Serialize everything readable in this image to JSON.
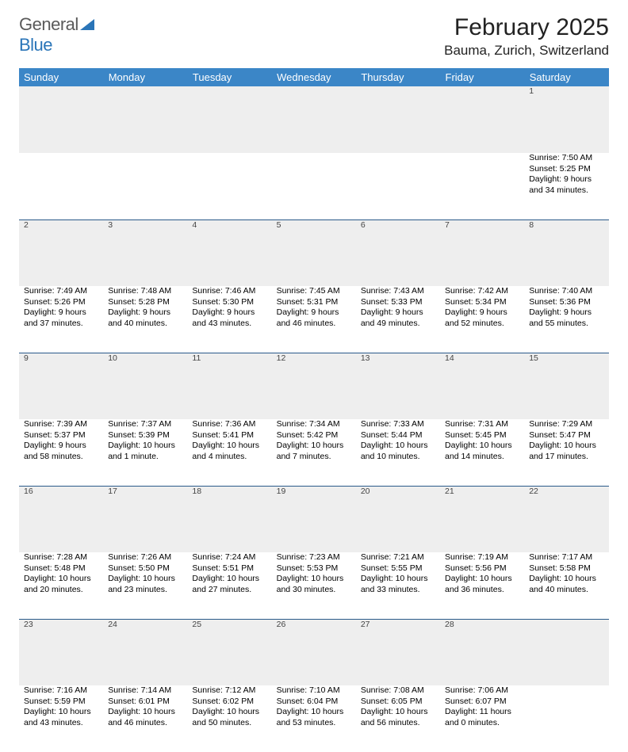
{
  "logo": {
    "word1": "General",
    "word2": "Blue"
  },
  "title": "February 2025",
  "location": "Bauma, Zurich, Switzerland",
  "colors": {
    "header_bg": "#3b86c7",
    "header_text": "#ffffff",
    "daynum_bg": "#eeeeee",
    "rule": "#2a5a8a",
    "logo_gray": "#5a5a5a",
    "logo_blue": "#2a75b8"
  },
  "weekdays": [
    "Sunday",
    "Monday",
    "Tuesday",
    "Wednesday",
    "Thursday",
    "Friday",
    "Saturday"
  ],
  "weeks": [
    [
      null,
      null,
      null,
      null,
      null,
      null,
      {
        "n": "1",
        "sr": "Sunrise: 7:50 AM",
        "ss": "Sunset: 5:25 PM",
        "dl": "Daylight: 9 hours and 34 minutes."
      }
    ],
    [
      {
        "n": "2",
        "sr": "Sunrise: 7:49 AM",
        "ss": "Sunset: 5:26 PM",
        "dl": "Daylight: 9 hours and 37 minutes."
      },
      {
        "n": "3",
        "sr": "Sunrise: 7:48 AM",
        "ss": "Sunset: 5:28 PM",
        "dl": "Daylight: 9 hours and 40 minutes."
      },
      {
        "n": "4",
        "sr": "Sunrise: 7:46 AM",
        "ss": "Sunset: 5:30 PM",
        "dl": "Daylight: 9 hours and 43 minutes."
      },
      {
        "n": "5",
        "sr": "Sunrise: 7:45 AM",
        "ss": "Sunset: 5:31 PM",
        "dl": "Daylight: 9 hours and 46 minutes."
      },
      {
        "n": "6",
        "sr": "Sunrise: 7:43 AM",
        "ss": "Sunset: 5:33 PM",
        "dl": "Daylight: 9 hours and 49 minutes."
      },
      {
        "n": "7",
        "sr": "Sunrise: 7:42 AM",
        "ss": "Sunset: 5:34 PM",
        "dl": "Daylight: 9 hours and 52 minutes."
      },
      {
        "n": "8",
        "sr": "Sunrise: 7:40 AM",
        "ss": "Sunset: 5:36 PM",
        "dl": "Daylight: 9 hours and 55 minutes."
      }
    ],
    [
      {
        "n": "9",
        "sr": "Sunrise: 7:39 AM",
        "ss": "Sunset: 5:37 PM",
        "dl": "Daylight: 9 hours and 58 minutes."
      },
      {
        "n": "10",
        "sr": "Sunrise: 7:37 AM",
        "ss": "Sunset: 5:39 PM",
        "dl": "Daylight: 10 hours and 1 minute."
      },
      {
        "n": "11",
        "sr": "Sunrise: 7:36 AM",
        "ss": "Sunset: 5:41 PM",
        "dl": "Daylight: 10 hours and 4 minutes."
      },
      {
        "n": "12",
        "sr": "Sunrise: 7:34 AM",
        "ss": "Sunset: 5:42 PM",
        "dl": "Daylight: 10 hours and 7 minutes."
      },
      {
        "n": "13",
        "sr": "Sunrise: 7:33 AM",
        "ss": "Sunset: 5:44 PM",
        "dl": "Daylight: 10 hours and 10 minutes."
      },
      {
        "n": "14",
        "sr": "Sunrise: 7:31 AM",
        "ss": "Sunset: 5:45 PM",
        "dl": "Daylight: 10 hours and 14 minutes."
      },
      {
        "n": "15",
        "sr": "Sunrise: 7:29 AM",
        "ss": "Sunset: 5:47 PM",
        "dl": "Daylight: 10 hours and 17 minutes."
      }
    ],
    [
      {
        "n": "16",
        "sr": "Sunrise: 7:28 AM",
        "ss": "Sunset: 5:48 PM",
        "dl": "Daylight: 10 hours and 20 minutes."
      },
      {
        "n": "17",
        "sr": "Sunrise: 7:26 AM",
        "ss": "Sunset: 5:50 PM",
        "dl": "Daylight: 10 hours and 23 minutes."
      },
      {
        "n": "18",
        "sr": "Sunrise: 7:24 AM",
        "ss": "Sunset: 5:51 PM",
        "dl": "Daylight: 10 hours and 27 minutes."
      },
      {
        "n": "19",
        "sr": "Sunrise: 7:23 AM",
        "ss": "Sunset: 5:53 PM",
        "dl": "Daylight: 10 hours and 30 minutes."
      },
      {
        "n": "20",
        "sr": "Sunrise: 7:21 AM",
        "ss": "Sunset: 5:55 PM",
        "dl": "Daylight: 10 hours and 33 minutes."
      },
      {
        "n": "21",
        "sr": "Sunrise: 7:19 AM",
        "ss": "Sunset: 5:56 PM",
        "dl": "Daylight: 10 hours and 36 minutes."
      },
      {
        "n": "22",
        "sr": "Sunrise: 7:17 AM",
        "ss": "Sunset: 5:58 PM",
        "dl": "Daylight: 10 hours and 40 minutes."
      }
    ],
    [
      {
        "n": "23",
        "sr": "Sunrise: 7:16 AM",
        "ss": "Sunset: 5:59 PM",
        "dl": "Daylight: 10 hours and 43 minutes."
      },
      {
        "n": "24",
        "sr": "Sunrise: 7:14 AM",
        "ss": "Sunset: 6:01 PM",
        "dl": "Daylight: 10 hours and 46 minutes."
      },
      {
        "n": "25",
        "sr": "Sunrise: 7:12 AM",
        "ss": "Sunset: 6:02 PM",
        "dl": "Daylight: 10 hours and 50 minutes."
      },
      {
        "n": "26",
        "sr": "Sunrise: 7:10 AM",
        "ss": "Sunset: 6:04 PM",
        "dl": "Daylight: 10 hours and 53 minutes."
      },
      {
        "n": "27",
        "sr": "Sunrise: 7:08 AM",
        "ss": "Sunset: 6:05 PM",
        "dl": "Daylight: 10 hours and 56 minutes."
      },
      {
        "n": "28",
        "sr": "Sunrise: 7:06 AM",
        "ss": "Sunset: 6:07 PM",
        "dl": "Daylight: 11 hours and 0 minutes."
      },
      null
    ]
  ]
}
